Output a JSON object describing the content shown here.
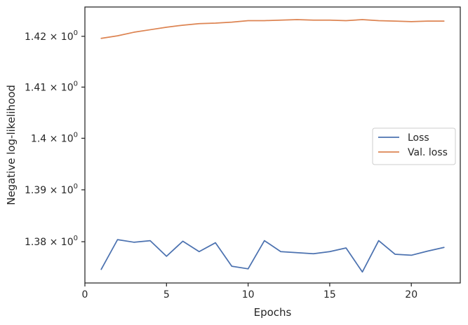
{
  "chart_data": {
    "type": "line",
    "xlabel": "Epochs",
    "ylabel": "Negative log-likelihood",
    "yscale": "log",
    "xlim": [
      0,
      23
    ],
    "ylim": [
      1.3721,
      1.4258
    ],
    "xticks": [
      0,
      5,
      10,
      15,
      20
    ],
    "yticks": [
      {
        "value": 1.38,
        "mantissa": "1.38",
        "base": "10",
        "exponent": "0"
      },
      {
        "value": 1.39,
        "mantissa": "1.39",
        "base": "10",
        "exponent": "0"
      },
      {
        "value": 1.4,
        "mantissa": "1.4",
        "base": "10",
        "exponent": "0"
      },
      {
        "value": 1.41,
        "mantissa": "1.41",
        "base": "10",
        "exponent": "0"
      },
      {
        "value": 1.42,
        "mantissa": "1.42",
        "base": "10",
        "exponent": "0"
      }
    ],
    "grid": false,
    "legend_position": "center-right",
    "x": [
      1,
      2,
      3,
      4,
      5,
      6,
      7,
      8,
      9,
      10,
      11,
      12,
      13,
      14,
      15,
      16,
      17,
      18,
      19,
      20,
      21,
      22
    ],
    "series": [
      {
        "name": "Loss",
        "color": "#4c72b0",
        "values": [
          1.3747,
          1.3804,
          1.3799,
          1.3802,
          1.3772,
          1.3801,
          1.3781,
          1.3798,
          1.3753,
          1.3748,
          1.3802,
          1.3781,
          1.3779,
          1.3777,
          1.3781,
          1.3788,
          1.3742,
          1.3802,
          1.3776,
          1.3774,
          1.3782,
          1.3789
        ]
      },
      {
        "name": "Val. loss",
        "color": "#dd8452",
        "values": [
          1.4196,
          1.4201,
          1.4208,
          1.4213,
          1.4218,
          1.4222,
          1.4225,
          1.4226,
          1.4228,
          1.4231,
          1.4231,
          1.4232,
          1.4233,
          1.4232,
          1.4232,
          1.4231,
          1.4233,
          1.4231,
          1.423,
          1.4229,
          1.423,
          1.423
        ]
      }
    ]
  }
}
